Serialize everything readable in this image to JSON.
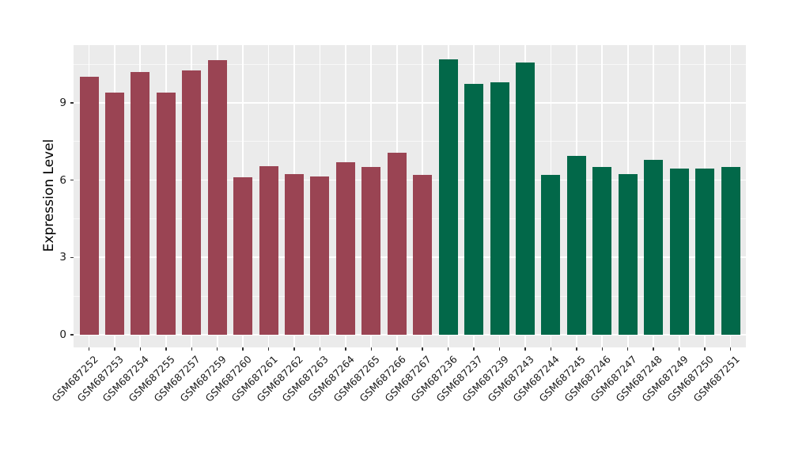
{
  "chart_data": {
    "type": "bar",
    "title": "",
    "xlabel": "",
    "ylabel": "Expression Level",
    "yticks": [
      0,
      3,
      6,
      9
    ],
    "minor_yticks": [
      1.5,
      4.5,
      7.5,
      10.5
    ],
    "ylim": [
      -0.5,
      11.25
    ],
    "grid": "on",
    "legend_position": "none",
    "panel_background": "#EBEBEB",
    "grid_color": "#FFFFFF",
    "tick_color": "#333333",
    "group_colors": {
      "group1": "#9A4453",
      "group2": "#026849"
    },
    "bars": [
      {
        "label": "GSM687252",
        "value": 10.0,
        "group": "group1"
      },
      {
        "label": "GSM687253",
        "value": 9.4,
        "group": "group1"
      },
      {
        "label": "GSM687254",
        "value": 10.2,
        "group": "group1"
      },
      {
        "label": "GSM687255",
        "value": 9.4,
        "group": "group1"
      },
      {
        "label": "GSM687257",
        "value": 10.25,
        "group": "group1"
      },
      {
        "label": "GSM687259",
        "value": 10.65,
        "group": "group1"
      },
      {
        "label": "GSM687260",
        "value": 6.1,
        "group": "group1"
      },
      {
        "label": "GSM687261",
        "value": 6.55,
        "group": "group1"
      },
      {
        "label": "GSM687262",
        "value": 6.25,
        "group": "group1"
      },
      {
        "label": "GSM687263",
        "value": 6.15,
        "group": "group1"
      },
      {
        "label": "GSM687264",
        "value": 6.7,
        "group": "group1"
      },
      {
        "label": "GSM687265",
        "value": 6.5,
        "group": "group1"
      },
      {
        "label": "GSM687266",
        "value": 7.05,
        "group": "group1"
      },
      {
        "label": "GSM687267",
        "value": 6.2,
        "group": "group1"
      },
      {
        "label": "GSM687236",
        "value": 10.7,
        "group": "group2"
      },
      {
        "label": "GSM687237",
        "value": 9.75,
        "group": "group2"
      },
      {
        "label": "GSM687239",
        "value": 9.8,
        "group": "group2"
      },
      {
        "label": "GSM687243",
        "value": 10.55,
        "group": "group2"
      },
      {
        "label": "GSM687244",
        "value": 6.2,
        "group": "group2"
      },
      {
        "label": "GSM687245",
        "value": 6.95,
        "group": "group2"
      },
      {
        "label": "GSM687246",
        "value": 6.5,
        "group": "group2"
      },
      {
        "label": "GSM687247",
        "value": 6.25,
        "group": "group2"
      },
      {
        "label": "GSM687248",
        "value": 6.8,
        "group": "group2"
      },
      {
        "label": "GSM687249",
        "value": 6.45,
        "group": "group2"
      },
      {
        "label": "GSM687250",
        "value": 6.45,
        "group": "group2"
      },
      {
        "label": "GSM687251",
        "value": 6.5,
        "group": "group2"
      }
    ]
  }
}
